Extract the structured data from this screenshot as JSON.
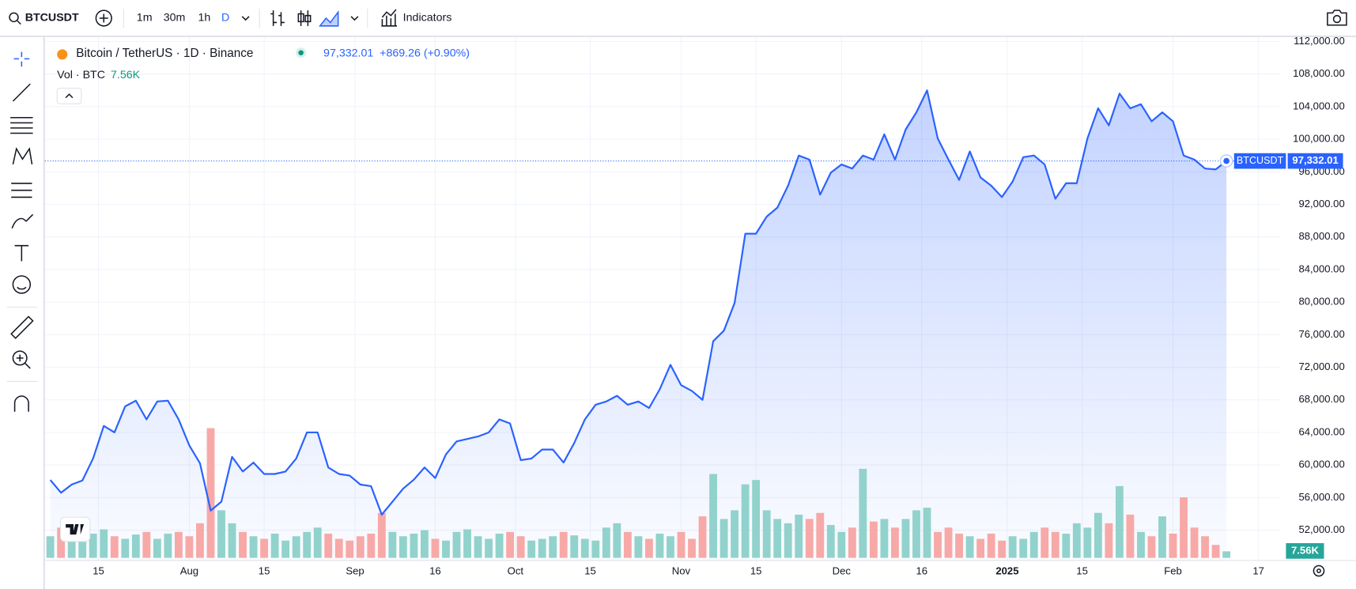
{
  "toolbar": {
    "symbol": "BTCUSDT",
    "intervals": [
      "1m",
      "30m",
      "1h",
      "D"
    ],
    "indicators": "Indicators"
  },
  "chart_data": {
    "type": "area",
    "title": "Bitcoin / TetherUS · 1D · Binance",
    "change": "+869.26 (+0.90%)",
    "series": [
      {
        "name": "BTCUSDT",
        "color": "#2962ff",
        "values": [
          58160,
          56600,
          57600,
          58100,
          60800,
          64800,
          64000,
          67200,
          67900,
          65600,
          67800,
          67900,
          65600,
          62400,
          60200,
          54400,
          55500,
          61000,
          59200,
          60300,
          58900,
          58900,
          59200,
          60800,
          64000,
          64000,
          59700,
          58900,
          58700,
          57600,
          57400,
          53900,
          55500,
          57100,
          58200,
          59700,
          58400,
          61300,
          62900,
          63200,
          63500,
          64000,
          65600,
          65100,
          60600,
          60800,
          61900,
          61900,
          60300,
          62700,
          65600,
          67400,
          67800,
          68500,
          67400,
          67800,
          67000,
          69300,
          72300,
          69800,
          69100,
          68000,
          75200,
          76500,
          79900,
          88400,
          88400,
          90500,
          91600,
          94300,
          98000,
          97500,
          93200,
          95900,
          96900,
          96400,
          98000,
          97500,
          100600,
          97500,
          101200,
          103300,
          106000,
          100100,
          97500,
          95000,
          98500,
          95300,
          94300,
          92900,
          94800,
          97800,
          98000,
          96900,
          92700,
          94600,
          94600,
          100100,
          103800,
          101700,
          105600,
          103800,
          104300,
          102200,
          103300,
          102200,
          98000,
          97500,
          96400,
          96300,
          97332.01
        ],
        "value_labels": [
          null,
          null,
          null,
          null,
          null,
          null,
          null,
          null,
          null,
          null,
          null,
          null,
          null,
          null,
          null,
          null,
          null,
          null,
          null,
          null,
          null,
          null,
          null,
          null,
          null,
          null,
          null,
          null,
          null,
          null,
          null,
          null,
          null,
          null,
          null,
          null,
          null,
          null,
          null,
          null,
          null,
          null,
          null,
          null,
          null,
          null,
          null,
          null,
          null,
          null,
          null,
          null,
          null,
          null,
          null,
          null,
          null,
          null,
          null,
          null,
          null,
          null,
          null,
          null,
          null,
          null,
          null,
          null,
          null,
          null,
          null,
          null,
          null,
          null,
          null,
          null,
          null,
          null,
          null,
          null,
          null,
          null,
          null,
          null,
          null,
          null,
          null,
          null,
          null,
          null,
          null,
          null,
          null,
          null,
          null,
          null,
          null,
          null,
          null,
          null,
          null,
          null,
          null,
          null,
          null,
          null,
          null,
          null,
          null,
          null,
          "97,332.01"
        ]
      }
    ],
    "volume": {
      "name": "Vol · BTC",
      "up_color": "#92d2cc",
      "down_color": "#f7a9a7",
      "values": [
        25000,
        35000,
        30000,
        20000,
        28000,
        33000,
        25000,
        22000,
        27000,
        30000,
        22000,
        28000,
        30000,
        25000,
        40000,
        150000,
        55000,
        40000,
        30000,
        25000,
        22000,
        28000,
        20000,
        25000,
        30000,
        35000,
        28000,
        22000,
        20000,
        25000,
        28000,
        52000,
        30000,
        25000,
        28000,
        32000,
        22000,
        20000,
        30000,
        33000,
        25000,
        22000,
        28000,
        30000,
        25000,
        20000,
        22000,
        25000,
        30000,
        26000,
        22000,
        20000,
        35000,
        40000,
        30000,
        25000,
        22000,
        28000,
        25000,
        30000,
        22000,
        48000,
        97000,
        45000,
        55000,
        85000,
        90000,
        55000,
        45000,
        40000,
        50000,
        45000,
        52000,
        38000,
        30000,
        35000,
        103000,
        42000,
        45000,
        35000,
        45000,
        55000,
        58000,
        30000,
        35000,
        28000,
        25000,
        22000,
        28000,
        20000,
        25000,
        22000,
        30000,
        35000,
        30000,
        28000,
        40000,
        35000,
        52000,
        40000,
        83000,
        50000,
        30000,
        25000,
        48000,
        28000,
        70000,
        35000,
        25000,
        15000,
        7560
      ],
      "value_labels": [
        null,
        null,
        null,
        null,
        null,
        null,
        null,
        null,
        null,
        null,
        null,
        null,
        null,
        null,
        null,
        null,
        null,
        null,
        null,
        null,
        null,
        null,
        null,
        null,
        null,
        null,
        null,
        null,
        null,
        null,
        null,
        null,
        null,
        null,
        null,
        null,
        null,
        null,
        null,
        null,
        null,
        null,
        null,
        null,
        null,
        null,
        null,
        null,
        null,
        null,
        null,
        null,
        null,
        null,
        null,
        null,
        null,
        null,
        null,
        null,
        null,
        null,
        null,
        null,
        null,
        null,
        null,
        null,
        null,
        null,
        null,
        null,
        null,
        null,
        null,
        null,
        null,
        null,
        null,
        null,
        null,
        null,
        null,
        null,
        null,
        null,
        null,
        null,
        null,
        null,
        null,
        null,
        null,
        null,
        null,
        null,
        null,
        null,
        null,
        null,
        null,
        null,
        null,
        null,
        null,
        null,
        null,
        null,
        null,
        null,
        "7.56K"
      ]
    },
    "xlim": [
      -0.5,
      115
    ],
    "xticks": [
      {
        "value": 4.5,
        "label": "15"
      },
      {
        "value": 13,
        "label": "Aug"
      },
      {
        "value": 20,
        "label": "15"
      },
      {
        "value": 28.5,
        "label": "Sep"
      },
      {
        "value": 36,
        "label": "16"
      },
      {
        "value": 43.5,
        "label": "Oct"
      },
      {
        "value": 50.5,
        "label": "15"
      },
      {
        "value": 59,
        "label": "Nov"
      },
      {
        "value": 66,
        "label": "15"
      },
      {
        "value": 74,
        "label": "Dec"
      },
      {
        "value": 81.5,
        "label": "16"
      },
      {
        "value": 89.5,
        "label": "2025"
      },
      {
        "value": 96.5,
        "label": "15"
      },
      {
        "value": 105,
        "label": "Feb"
      },
      {
        "value": 113,
        "label": "17"
      }
    ],
    "ylim": [
      48280,
      112530
    ],
    "yticks": [
      {
        "value": 52000,
        "label": "52,000.00"
      },
      {
        "value": 56000,
        "label": "56,000.00"
      },
      {
        "value": 60000,
        "label": "60,000.00"
      },
      {
        "value": 64000,
        "label": "64,000.00"
      },
      {
        "value": 68000,
        "label": "68,000.00"
      },
      {
        "value": 72000,
        "label": "72,000.00"
      },
      {
        "value": 76000,
        "label": "76,000.00"
      },
      {
        "value": 80000,
        "label": "80,000.00"
      },
      {
        "value": 84000,
        "label": "84,000.00"
      },
      {
        "value": 88000,
        "label": "88,000.00"
      },
      {
        "value": 92000,
        "label": "92,000.00"
      },
      {
        "value": 96000,
        "label": "96,000.00"
      },
      {
        "value": 100000,
        "label": "100,000.00"
      },
      {
        "value": 104000,
        "label": "104,000.00"
      },
      {
        "value": 108000,
        "label": "108,000.00"
      },
      {
        "value": 112000,
        "label": "112,000.00"
      }
    ],
    "grid": true
  }
}
